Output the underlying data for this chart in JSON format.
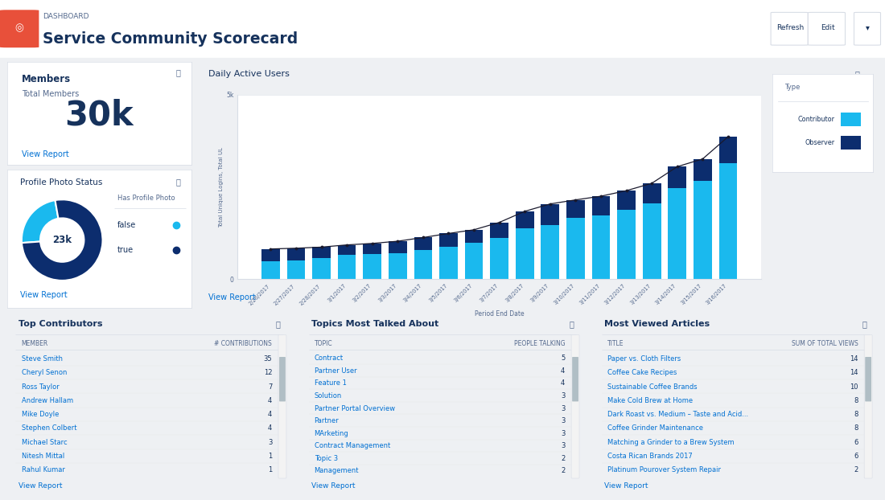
{
  "title": "Service Community Scorecard",
  "subtitle": "DASHBOARD",
  "bg_color": "#eef0f3",
  "panel_bg": "#ffffff",
  "border_color": "#d8dde6",
  "header_bg": "#ffffff",
  "text_dark": "#16325c",
  "text_blue": "#0070d2",
  "text_gray": "#54698d",
  "members_title": "Members",
  "members_subtitle": "Total Members",
  "members_value": "30k",
  "profile_title": "Profile Photo Status",
  "donut_false_val": 7,
  "donut_true_val": 23,
  "donut_center_label": "23k",
  "donut_colors": [
    "#1ab9ee",
    "#0c2d6e"
  ],
  "bar_title": "Daily Active Users",
  "bar_ylabel": "Total Unique Logins, Total UL",
  "bar_xlabel": "Period End Date",
  "bar_dates": [
    "2/26/2017",
    "2/27/2017",
    "2/28/2017",
    "3/1/2017",
    "3/2/2017",
    "3/3/2017",
    "3/4/2017",
    "3/5/2017",
    "3/6/2017",
    "3/7/2017",
    "3/8/2017",
    "3/9/2017",
    "3/10/2017",
    "3/11/2017",
    "3/12/2017",
    "3/13/2017",
    "3/14/2017",
    "3/15/2017",
    "3/16/2017"
  ],
  "bar_contributor": [
    480,
    500,
    580,
    650,
    680,
    700,
    800,
    880,
    980,
    1120,
    1380,
    1470,
    1670,
    1720,
    1870,
    2060,
    2460,
    2660,
    3150
  ],
  "bar_observer": [
    820,
    840,
    870,
    930,
    970,
    1030,
    1130,
    1240,
    1340,
    1540,
    1840,
    2040,
    2150,
    2250,
    2400,
    2600,
    3050,
    3260,
    3860
  ],
  "bar_color_contributor": "#1ab9ee",
  "bar_color_observer": "#0c2d6e",
  "bar_ytick_label": "5k",
  "bar_ytick_val": 5000,
  "contributors_title": "Top Contributors",
  "contributors_header": [
    "MEMBER",
    "# CONTRIBUTIONS"
  ],
  "contributors": [
    [
      "Steve Smith",
      35
    ],
    [
      "Cheryl Senon",
      12
    ],
    [
      "Ross Taylor",
      7
    ],
    [
      "Andrew Hallam",
      4
    ],
    [
      "Mike Doyle",
      4
    ],
    [
      "Stephen Colbert",
      4
    ],
    [
      "Michael Starc",
      3
    ],
    [
      "Nitesh Mittal",
      1
    ],
    [
      "Rahul Kumar",
      1
    ]
  ],
  "topics_title": "Topics Most Talked About",
  "topics_header": [
    "TOPIC",
    "PEOPLE TALKING"
  ],
  "topics": [
    [
      "Contract",
      5
    ],
    [
      "Partner User",
      4
    ],
    [
      "Feature 1",
      4
    ],
    [
      "Solution",
      3
    ],
    [
      "Partner Portal Overview",
      3
    ],
    [
      "Partner",
      3
    ],
    [
      "MArketing",
      3
    ],
    [
      "Contract Management",
      3
    ],
    [
      "Topic 3",
      2
    ],
    [
      "Management",
      2
    ]
  ],
  "articles_title": "Most Viewed Articles",
  "articles_header": [
    "TITLE",
    "SUM OF TOTAL VIEWS"
  ],
  "articles": [
    [
      "Paper vs. Cloth Filters",
      14
    ],
    [
      "Coffee Cake Recipes",
      14
    ],
    [
      "Sustainable Coffee Brands",
      10
    ],
    [
      "Make Cold Brew at Home",
      8
    ],
    [
      "Dark Roast vs. Medium – Taste and Acid...",
      8
    ],
    [
      "Coffee Grinder Maintenance",
      8
    ],
    [
      "Matching a Grinder to a Brew System",
      6
    ],
    [
      "Costa Rican Brands 2017",
      6
    ],
    [
      "Platinum Pourover System Repair",
      2
    ]
  ],
  "view_report_color": "#0070d2",
  "legend_contributor": "Contributor",
  "legend_observer": "Observer"
}
